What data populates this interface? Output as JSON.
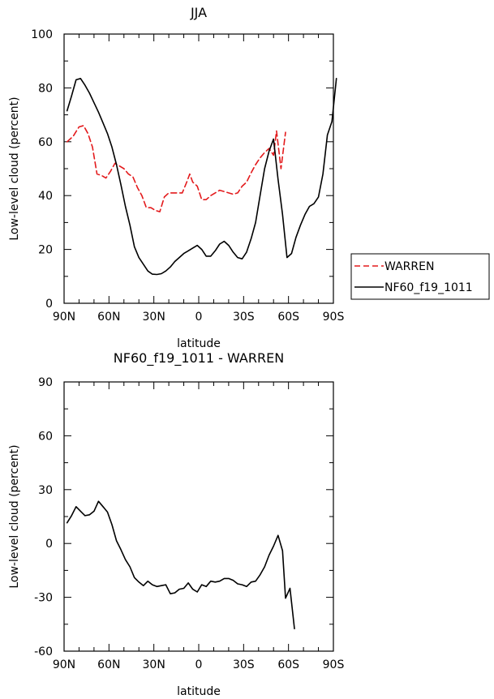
{
  "chart_data": [
    {
      "type": "line",
      "title": "JJA",
      "xlabel": "latitude",
      "ylabel": "Low-level cloud (percent)",
      "xlim": [
        -90,
        90
      ],
      "ylim": [
        0,
        100
      ],
      "x_ticks": [
        -90,
        -60,
        -30,
        0,
        30,
        60,
        90
      ],
      "x_tick_labels": [
        "90N",
        "60N",
        "30N",
        "0",
        "30S",
        "60S",
        "90S"
      ],
      "y_ticks": [
        0,
        20,
        40,
        60,
        80,
        100
      ],
      "y_tick_labels": [
        "0",
        "20",
        "40",
        "60",
        "80",
        "100"
      ],
      "legend_position": "right",
      "series": [
        {
          "name": "WARREN",
          "color": "#e31a1c",
          "style": "dashed",
          "points": [
            [
              -88,
              60
            ],
            [
              -84,
              62
            ],
            [
              -80,
              65.5
            ],
            [
              -77,
              66
            ],
            [
              -74,
              63
            ],
            [
              -71,
              58
            ],
            [
              -68,
              48
            ],
            [
              -65,
              47.5
            ],
            [
              -62,
              46.5
            ],
            [
              -59,
              49
            ],
            [
              -56,
              52
            ],
            [
              -53,
              51
            ],
            [
              -50,
              50
            ],
            [
              -47,
              48
            ],
            [
              -44,
              47
            ],
            [
              -41,
              43
            ],
            [
              -38,
              40
            ],
            [
              -35,
              35.5
            ],
            [
              -32,
              35.5
            ],
            [
              -29,
              34.5
            ],
            [
              -26,
              34
            ],
            [
              -23,
              39.5
            ],
            [
              -20,
              41
            ],
            [
              -17,
              41
            ],
            [
              -14,
              41
            ],
            [
              -11,
              41
            ],
            [
              -8,
              45
            ],
            [
              -6,
              48
            ],
            [
              -4,
              45
            ],
            [
              -1,
              43.5
            ],
            [
              2,
              38.5
            ],
            [
              5,
              38.5
            ],
            [
              8,
              40
            ],
            [
              11,
              41
            ],
            [
              14,
              42
            ],
            [
              17,
              41.5
            ],
            [
              20,
              41
            ],
            [
              23,
              40.5
            ],
            [
              26,
              41
            ],
            [
              29,
              43.5
            ],
            [
              32,
              45
            ],
            [
              35,
              48.5
            ],
            [
              38,
              51.5
            ],
            [
              41,
              54
            ],
            [
              44,
              56
            ],
            [
              47,
              57.5
            ],
            [
              50,
              55
            ],
            [
              52,
              64
            ],
            [
              55,
              50
            ],
            [
              58,
              63.5
            ]
          ]
        },
        {
          "name": "NF60_f19_1011",
          "color": "#000000",
          "style": "solid",
          "points": [
            [
              -88,
              71.5
            ],
            [
              -85,
              77
            ],
            [
              -82,
              83
            ],
            [
              -79,
              83.5
            ],
            [
              -76,
              81
            ],
            [
              -73,
              78
            ],
            [
              -70,
              74.5
            ],
            [
              -67,
              71
            ],
            [
              -64,
              67
            ],
            [
              -61,
              63
            ],
            [
              -58,
              58
            ],
            [
              -55,
              51.5
            ],
            [
              -52,
              44
            ],
            [
              -49,
              36
            ],
            [
              -46,
              29
            ],
            [
              -43,
              21
            ],
            [
              -40,
              17
            ],
            [
              -37,
              14.5
            ],
            [
              -34,
              12
            ],
            [
              -31,
              10.8
            ],
            [
              -28,
              10.7
            ],
            [
              -25,
              11
            ],
            [
              -22,
              12
            ],
            [
              -19,
              13.5
            ],
            [
              -16,
              15.5
            ],
            [
              -13,
              17
            ],
            [
              -10,
              18.5
            ],
            [
              -7,
              19.5
            ],
            [
              -4,
              20.5
            ],
            [
              -1,
              21.5
            ],
            [
              2,
              20
            ],
            [
              5,
              17.5
            ],
            [
              8,
              17.5
            ],
            [
              11,
              19.5
            ],
            [
              14,
              22
            ],
            [
              17,
              23
            ],
            [
              20,
              21.5
            ],
            [
              23,
              19
            ],
            [
              26,
              17
            ],
            [
              29,
              16.5
            ],
            [
              32,
              19
            ],
            [
              35,
              24
            ],
            [
              38,
              30
            ],
            [
              41,
              40
            ],
            [
              44,
              50
            ],
            [
              47,
              56.5
            ],
            [
              50,
              61
            ],
            [
              53,
              46
            ],
            [
              56,
              33
            ],
            [
              59,
              17
            ],
            [
              62,
              18.5
            ],
            [
              65,
              24.5
            ],
            [
              68,
              29
            ],
            [
              71,
              33
            ],
            [
              74,
              36
            ],
            [
              77,
              37
            ],
            [
              80,
              39.5
            ],
            [
              83,
              48
            ],
            [
              86,
              62.5
            ],
            [
              89,
              67.5
            ],
            [
              92,
              83.5
            ]
          ]
        }
      ]
    },
    {
      "type": "line",
      "title": "NF60_f19_1011 - WARREN",
      "xlabel": "latitude",
      "ylabel": "Low-level cloud (percent)",
      "xlim": [
        -90,
        90
      ],
      "ylim": [
        -60,
        90
      ],
      "x_ticks": [
        -90,
        -60,
        -30,
        0,
        30,
        60,
        90
      ],
      "x_tick_labels": [
        "90N",
        "60N",
        "30N",
        "0",
        "30S",
        "60S",
        "90S"
      ],
      "y_ticks": [
        -60,
        -30,
        0,
        30,
        60,
        90
      ],
      "y_tick_labels": [
        "-60",
        "-30",
        "0",
        "30",
        "60",
        "90"
      ],
      "series": [
        {
          "name": "NF60_f19_1011 - WARREN",
          "color": "#000000",
          "style": "solid",
          "points": [
            [
              -88,
              11.5
            ],
            [
              -85,
              15.5
            ],
            [
              -82,
              20.5
            ],
            [
              -79,
              18
            ],
            [
              -76,
              15.5
            ],
            [
              -73,
              16
            ],
            [
              -70,
              18
            ],
            [
              -67,
              23.5
            ],
            [
              -64,
              20.5
            ],
            [
              -61,
              17.5
            ],
            [
              -58,
              10.5
            ],
            [
              -55,
              1.5
            ],
            [
              -52,
              -3.5
            ],
            [
              -49,
              -9
            ],
            [
              -46,
              -13
            ],
            [
              -43,
              -19
            ],
            [
              -40,
              -21.5
            ],
            [
              -37,
              -23.5
            ],
            [
              -34,
              -21
            ],
            [
              -31,
              -23
            ],
            [
              -28,
              -24
            ],
            [
              -25,
              -23.5
            ],
            [
              -22,
              -23
            ],
            [
              -19,
              -28
            ],
            [
              -16,
              -27.5
            ],
            [
              -13,
              -25.5
            ],
            [
              -10,
              -25
            ],
            [
              -7,
              -22
            ],
            [
              -4,
              -25.5
            ],
            [
              -1,
              -27
            ],
            [
              2,
              -23
            ],
            [
              5,
              -24
            ],
            [
              8,
              -21
            ],
            [
              11,
              -21.5
            ],
            [
              14,
              -21
            ],
            [
              17,
              -19.5
            ],
            [
              20,
              -19.5
            ],
            [
              23,
              -20.5
            ],
            [
              26,
              -22.5
            ],
            [
              29,
              -23
            ],
            [
              32,
              -24
            ],
            [
              35,
              -21.5
            ],
            [
              38,
              -21
            ],
            [
              41,
              -17.5
            ],
            [
              44,
              -13
            ],
            [
              47,
              -6.5
            ],
            [
              50,
              -1.5
            ],
            [
              53,
              4.5
            ],
            [
              56,
              -4
            ],
            [
              58,
              -30.5
            ],
            [
              61,
              -25
            ],
            [
              64,
              -47.5
            ]
          ]
        }
      ]
    }
  ]
}
